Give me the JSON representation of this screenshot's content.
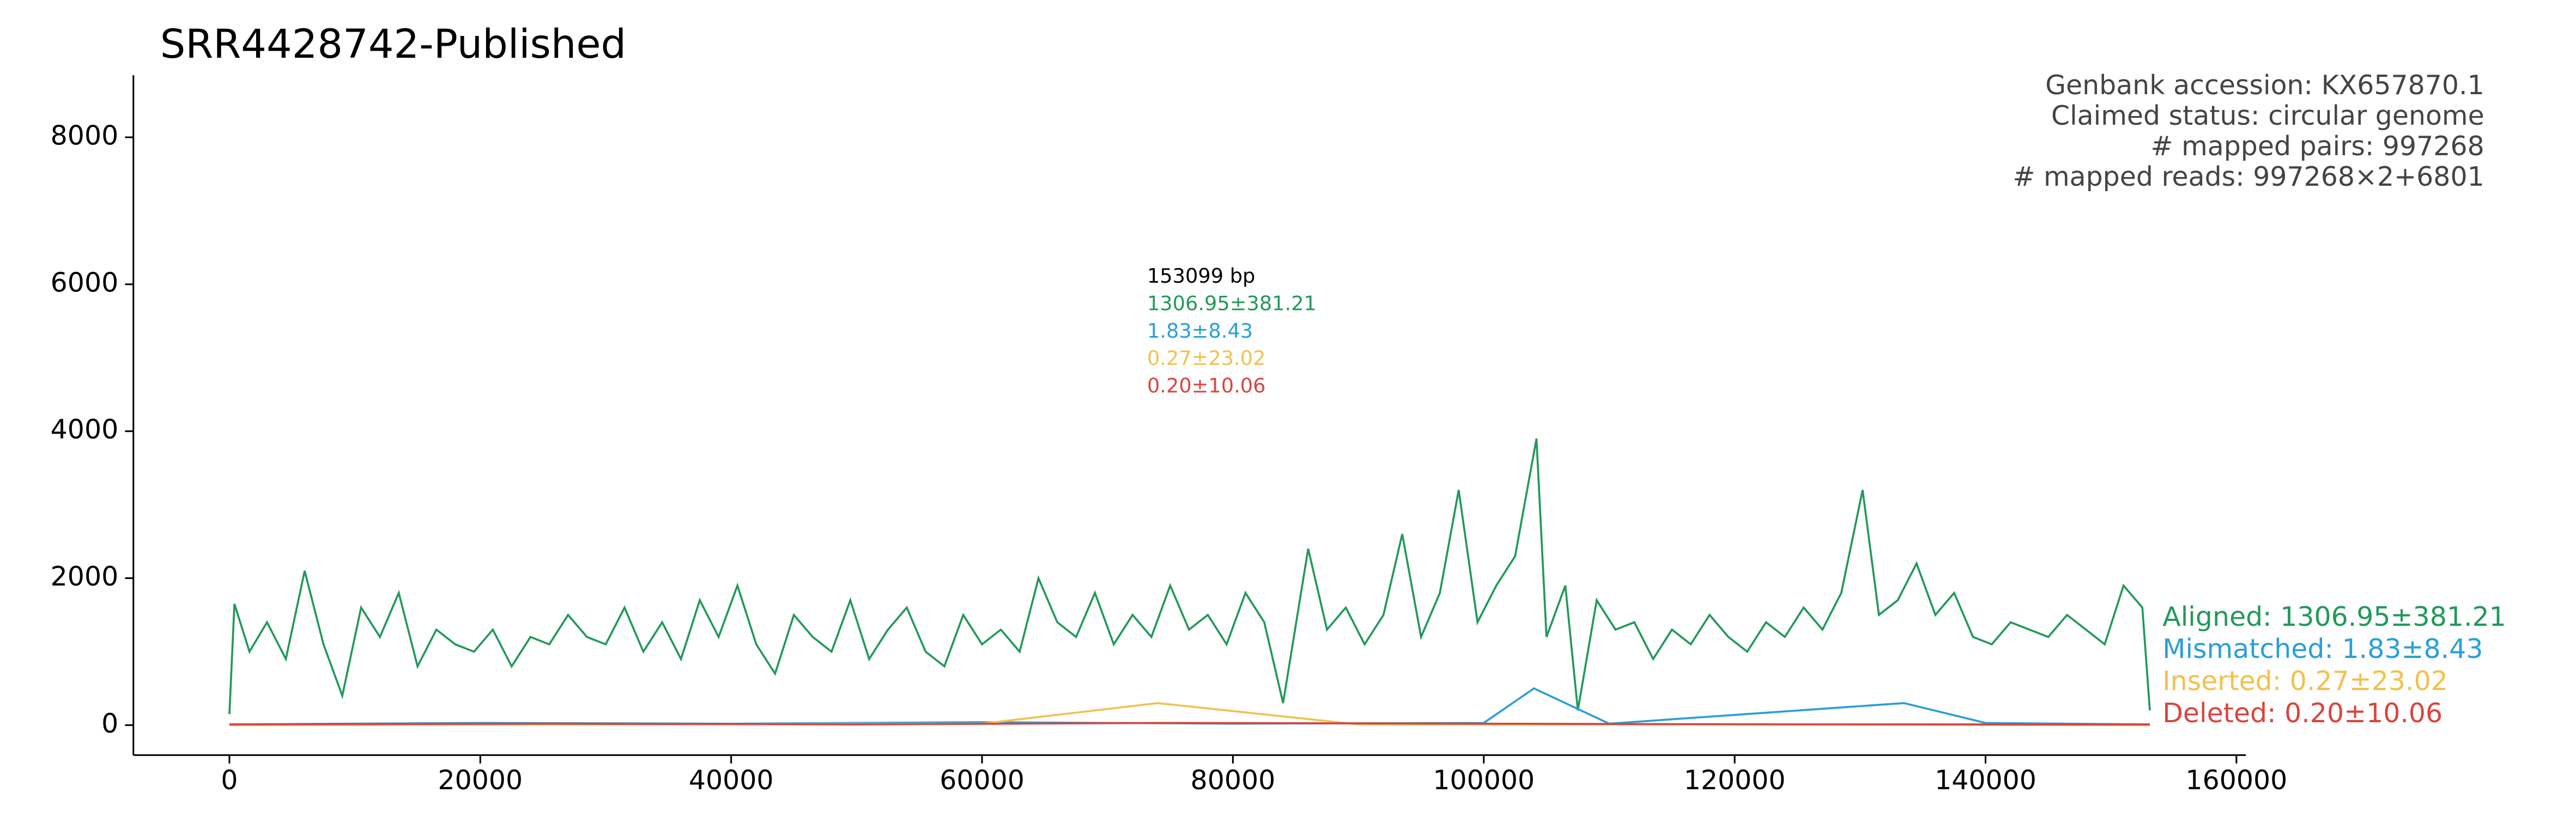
{
  "chart_data": {
    "type": "line",
    "title": "SRR4428742-Published",
    "info": [
      "Genbank accession: KX657870.1",
      "Claimed status: circular genome",
      "# mapped pairs: 997268",
      "# mapped reads: 997268×2+6801"
    ],
    "summary": [
      "153099 bp",
      "1306.95±381.21",
      "1.83±8.43",
      "0.27±23.02",
      "0.20±10.06"
    ],
    "xlim": [
      -7655,
      160754
    ],
    "ylim": [
      -408,
      8845
    ],
    "xticks": [
      0,
      20000,
      40000,
      60000,
      80000,
      100000,
      120000,
      140000,
      160000
    ],
    "yticks": [
      0,
      2000,
      4000,
      6000,
      8000
    ],
    "series": [
      {
        "name": "Aligned: 1306.95±381.21",
        "color": "#22995a",
        "x": [
          0,
          400,
          1600,
          3000,
          4500,
          6000,
          7500,
          9000,
          10500,
          12000,
          13500,
          15000,
          16500,
          18000,
          19500,
          21000,
          22500,
          24000,
          25500,
          27000,
          28500,
          30000,
          31500,
          33000,
          34500,
          36000,
          37500,
          39000,
          40500,
          42000,
          43500,
          45000,
          46500,
          48000,
          49500,
          51000,
          52500,
          54000,
          55500,
          57000,
          58500,
          60000,
          61500,
          63000,
          64500,
          66000,
          67500,
          69000,
          70500,
          72000,
          73500,
          75000,
          76500,
          78000,
          79500,
          81000,
          82500,
          84000,
          86000,
          87500,
          89000,
          90500,
          92000,
          93500,
          95000,
          96500,
          98000,
          99500,
          101000,
          102500,
          104200,
          105000,
          106500,
          107500,
          109000,
          110500,
          112000,
          113500,
          115000,
          116500,
          118000,
          119500,
          121000,
          122500,
          124000,
          125500,
          127000,
          128500,
          130200,
          131500,
          133000,
          134500,
          136000,
          137500,
          139000,
          140500,
          142000,
          143500,
          145000,
          146500,
          148000,
          149500,
          151000,
          152500,
          153099
        ],
        "values": [
          150,
          1650,
          1000,
          1400,
          900,
          2100,
          1100,
          400,
          1600,
          1200,
          1800,
          800,
          1300,
          1100,
          1000,
          1300,
          800,
          1200,
          1100,
          1500,
          1200,
          1100,
          1600,
          1000,
          1400,
          900,
          1700,
          1200,
          1900,
          1100,
          700,
          1500,
          1200,
          1000,
          1700,
          900,
          1300,
          1600,
          1000,
          800,
          1500,
          1100,
          1300,
          1000,
          2000,
          1400,
          1200,
          1800,
          1100,
          1500,
          1200,
          1900,
          1300,
          1500,
          1100,
          1800,
          1400,
          300,
          2400,
          1300,
          1600,
          1100,
          1500,
          2600,
          1200,
          1800,
          3200,
          1400,
          1900,
          2300,
          3900,
          1200,
          1900,
          200,
          1700,
          1300,
          1400,
          900,
          1300,
          1100,
          1500,
          1200,
          1000,
          1400,
          1200,
          1600,
          1300,
          1800,
          3200,
          1500,
          1700,
          2200,
          1500,
          1800,
          1200,
          1100,
          1400,
          1300,
          1200,
          1500,
          1300,
          1100,
          1900,
          1600,
          200
        ]
      },
      {
        "name": "Mismatched: 1.83±8.43",
        "color": "#2a9fd8",
        "x": [
          0,
          20000,
          40000,
          60000,
          80000,
          100000,
          104000,
          110000,
          133500,
          140000,
          153099
        ],
        "values": [
          10,
          30,
          20,
          40,
          20,
          30,
          500,
          20,
          300,
          30,
          10
        ]
      },
      {
        "name": "Inserted: 0.27±23.02",
        "color": "#f2c14e",
        "x": [
          0,
          30000,
          60000,
          74000,
          90000,
          120000,
          153099
        ],
        "values": [
          0,
          10,
          20,
          300,
          10,
          10,
          0
        ]
      },
      {
        "name": "Deleted: 0.20±10.06",
        "color": "#d9453d",
        "x": [
          0,
          25000,
          50000,
          75000,
          100000,
          125000,
          153099
        ],
        "values": [
          10,
          20,
          10,
          30,
          20,
          10,
          10
        ]
      }
    ]
  }
}
